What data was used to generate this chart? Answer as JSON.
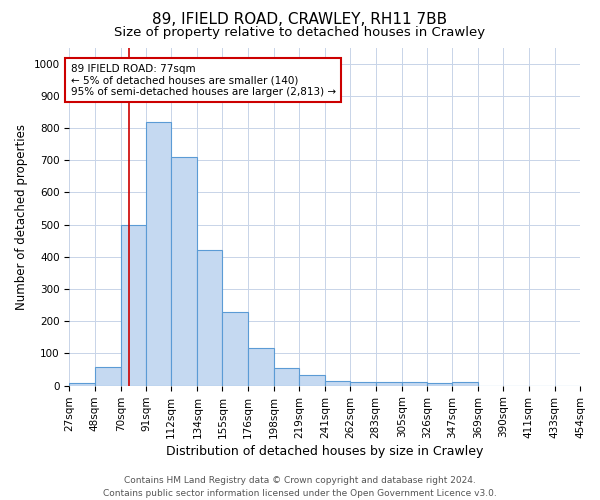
{
  "title": "89, IFIELD ROAD, CRAWLEY, RH11 7BB",
  "subtitle": "Size of property relative to detached houses in Crawley",
  "xlabel": "Distribution of detached houses by size in Crawley",
  "ylabel": "Number of detached properties",
  "bin_labels": [
    "27sqm",
    "48sqm",
    "70sqm",
    "91sqm",
    "112sqm",
    "134sqm",
    "155sqm",
    "176sqm",
    "198sqm",
    "219sqm",
    "241sqm",
    "262sqm",
    "283sqm",
    "305sqm",
    "326sqm",
    "347sqm",
    "369sqm",
    "390sqm",
    "411sqm",
    "433sqm",
    "454sqm"
  ],
  "bar_values": [
    8,
    57,
    500,
    820,
    710,
    420,
    230,
    117,
    55,
    33,
    15,
    13,
    12,
    10,
    8,
    10,
    0,
    0,
    0,
    0
  ],
  "bin_edges": [
    27,
    48,
    70,
    91,
    112,
    134,
    155,
    176,
    198,
    219,
    241,
    262,
    283,
    305,
    326,
    347,
    369,
    390,
    411,
    433,
    454
  ],
  "bar_color": "#c5d9f1",
  "bar_edge_color": "#5b9bd5",
  "property_sqm": 77,
  "vline_color": "#cc0000",
  "annotation_line1": "89 IFIELD ROAD: 77sqm",
  "annotation_line2": "← 5% of detached houses are smaller (140)",
  "annotation_line3": "95% of semi-detached houses are larger (2,813) →",
  "annotation_box_color": "#ffffff",
  "annotation_box_edge": "#cc0000",
  "ylim": [
    0,
    1050
  ],
  "yticks": [
    0,
    100,
    200,
    300,
    400,
    500,
    600,
    700,
    800,
    900,
    1000
  ],
  "footer_line1": "Contains HM Land Registry data © Crown copyright and database right 2024.",
  "footer_line2": "Contains public sector information licensed under the Open Government Licence v3.0.",
  "bg_color": "#ffffff",
  "grid_color": "#c8d4e8",
  "title_fontsize": 11,
  "subtitle_fontsize": 9.5,
  "axis_label_fontsize": 8.5,
  "tick_fontsize": 7.5,
  "footer_fontsize": 6.5
}
